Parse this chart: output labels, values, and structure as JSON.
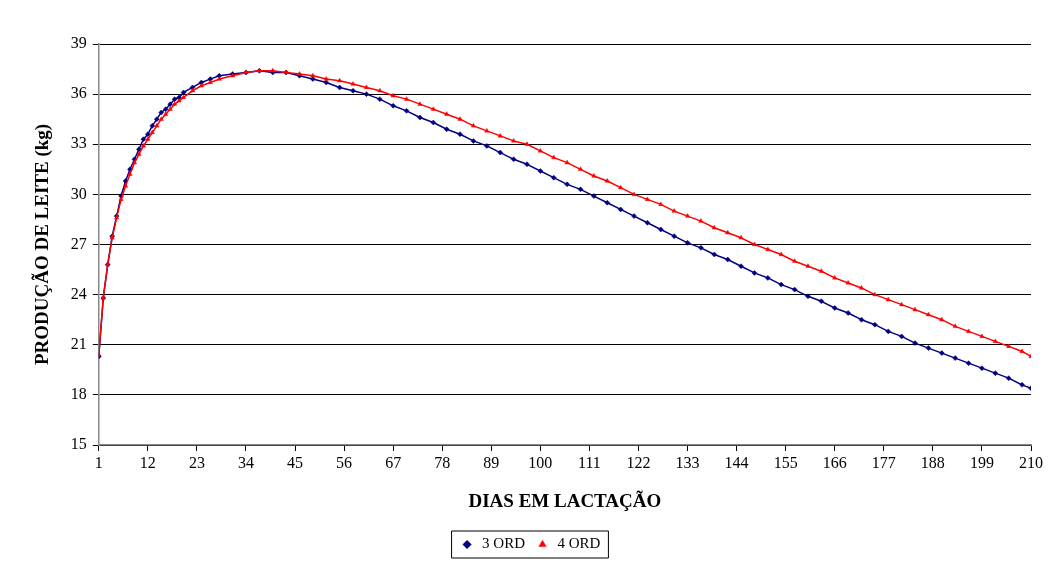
{
  "chart_data": {
    "type": "line",
    "xlabel": "DIAS EM LACTAÇÃO",
    "ylabel": "PRODUÇÃO DE LEITE (kg)",
    "xlim": [
      1,
      210
    ],
    "xticks": [
      1,
      12,
      23,
      34,
      45,
      56,
      67,
      78,
      89,
      100,
      111,
      122,
      133,
      144,
      155,
      166,
      177,
      188,
      199,
      210
    ],
    "ylim": [
      15,
      39
    ],
    "yticks": [
      15,
      18,
      21,
      24,
      27,
      30,
      33,
      36,
      39
    ],
    "grid": "y",
    "legend": "bottom",
    "line_style": "solid",
    "series": [
      {
        "name": "3 ORD",
        "color": "#000080",
        "marker": "diamond",
        "x": [
          1,
          2,
          3,
          4,
          5,
          6,
          7,
          8,
          9,
          10,
          11,
          12,
          13,
          14,
          15,
          16,
          17,
          18,
          19,
          20,
          22,
          24,
          26,
          28,
          31,
          34,
          37,
          40,
          43,
          46,
          49,
          52,
          55,
          58,
          61,
          64,
          67,
          70,
          73,
          76,
          79,
          82,
          85,
          88,
          91,
          94,
          97,
          100,
          103,
          106,
          109,
          112,
          115,
          118,
          121,
          124,
          127,
          130,
          133,
          136,
          139,
          142,
          145,
          148,
          151,
          154,
          157,
          160,
          163,
          166,
          169,
          172,
          175,
          178,
          181,
          184,
          187,
          190,
          193,
          196,
          199,
          202,
          205,
          208,
          210
        ],
        "values": [
          20.3,
          23.8,
          25.8,
          27.5,
          28.7,
          29.9,
          30.8,
          31.5,
          32.1,
          32.7,
          33.3,
          33.6,
          34.1,
          34.5,
          34.9,
          35.1,
          35.4,
          35.7,
          35.8,
          36.1,
          36.4,
          36.7,
          36.9,
          37.1,
          37.2,
          37.3,
          37.4,
          37.3,
          37.3,
          37.1,
          36.9,
          36.7,
          36.4,
          36.2,
          36.0,
          35.7,
          35.3,
          35.0,
          34.6,
          34.3,
          33.9,
          33.6,
          33.2,
          32.9,
          32.5,
          32.1,
          31.8,
          31.4,
          31.0,
          30.6,
          30.3,
          29.9,
          29.5,
          29.1,
          28.7,
          28.3,
          27.9,
          27.5,
          27.1,
          26.8,
          26.4,
          26.1,
          25.7,
          25.3,
          25.0,
          24.6,
          24.3,
          23.9,
          23.6,
          23.2,
          22.9,
          22.5,
          22.2,
          21.8,
          21.5,
          21.1,
          20.8,
          20.5,
          20.2,
          19.9,
          19.6,
          19.3,
          19.0,
          18.6,
          18.4
        ]
      },
      {
        "name": "4 ORD",
        "color": "#ff0000",
        "marker": "triangle",
        "x": [
          1,
          2,
          3,
          4,
          5,
          6,
          7,
          8,
          9,
          10,
          11,
          12,
          13,
          14,
          15,
          16,
          17,
          18,
          19,
          20,
          22,
          24,
          26,
          28,
          31,
          34,
          37,
          40,
          43,
          46,
          49,
          52,
          55,
          58,
          61,
          64,
          67,
          70,
          73,
          76,
          79,
          82,
          85,
          88,
          91,
          94,
          97,
          100,
          103,
          106,
          109,
          112,
          115,
          118,
          121,
          124,
          127,
          130,
          133,
          136,
          139,
          142,
          145,
          148,
          151,
          154,
          157,
          160,
          163,
          166,
          169,
          172,
          175,
          178,
          181,
          184,
          187,
          190,
          193,
          196,
          199,
          202,
          205,
          208,
          210
        ],
        "values": [
          20.4,
          23.8,
          25.8,
          27.4,
          28.6,
          29.7,
          30.5,
          31.2,
          31.9,
          32.4,
          32.9,
          33.3,
          33.7,
          34.1,
          34.5,
          34.8,
          35.1,
          35.4,
          35.6,
          35.8,
          36.2,
          36.5,
          36.7,
          36.9,
          37.1,
          37.3,
          37.4,
          37.4,
          37.3,
          37.2,
          37.1,
          36.9,
          36.8,
          36.6,
          36.4,
          36.2,
          35.9,
          35.7,
          35.4,
          35.1,
          34.8,
          34.5,
          34.1,
          33.8,
          33.5,
          33.2,
          33.0,
          32.6,
          32.2,
          31.9,
          31.5,
          31.1,
          30.8,
          30.4,
          30.0,
          29.7,
          29.4,
          29.0,
          28.7,
          28.4,
          28.0,
          27.7,
          27.4,
          27.0,
          26.7,
          26.4,
          26.0,
          25.7,
          25.4,
          25.0,
          24.7,
          24.4,
          24.0,
          23.7,
          23.4,
          23.1,
          22.8,
          22.5,
          22.1,
          21.8,
          21.5,
          21.2,
          20.9,
          20.6,
          20.3
        ]
      }
    ]
  }
}
